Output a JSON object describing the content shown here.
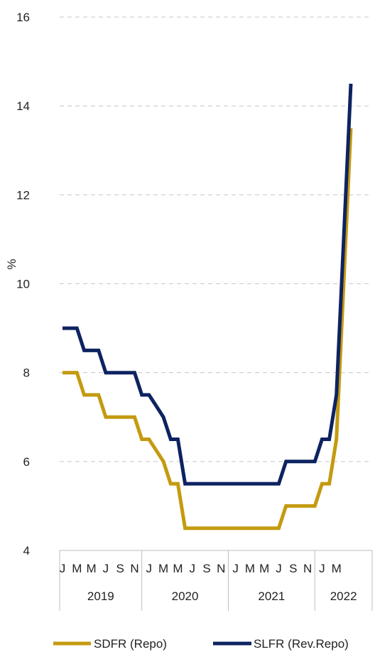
{
  "chart_data": {
    "type": "line",
    "ylabel": "%",
    "ylim": [
      4,
      16
    ],
    "yticks": [
      4,
      6,
      8,
      10,
      12,
      14,
      16
    ],
    "grid": "horizontal-dashed",
    "legend_position": "bottom",
    "month_labels": [
      "J",
      "M",
      "M",
      "J",
      "S",
      "N",
      "J",
      "M",
      "M",
      "J",
      "S",
      "N",
      "J",
      "M",
      "M",
      "J",
      "S",
      "N",
      "J",
      "M"
    ],
    "years": [
      {
        "label": "2019",
        "from": 0,
        "to": 12
      },
      {
        "label": "2020",
        "from": 12,
        "to": 24
      },
      {
        "label": "2021",
        "from": 24,
        "to": 36
      },
      {
        "label": "2022",
        "from": 36,
        "to": 40
      }
    ],
    "x": [
      0,
      1,
      2,
      3,
      4,
      5,
      6,
      7,
      8,
      9,
      10,
      11,
      12,
      13,
      14,
      15,
      16,
      17,
      18,
      19,
      20,
      21,
      22,
      23,
      24,
      25,
      26,
      27,
      28,
      29,
      30,
      31,
      32,
      33,
      34,
      35,
      36,
      37,
      38,
      39,
      40
    ],
    "series": [
      {
        "name": "SDFR (Repo)",
        "color": "#C49A0F",
        "values": [
          8,
          8,
          8,
          7.5,
          7.5,
          7.5,
          7,
          7,
          7,
          7,
          7,
          6.5,
          6.5,
          6.25,
          6,
          5.5,
          5.5,
          4.5,
          4.5,
          4.5,
          4.5,
          4.5,
          4.5,
          4.5,
          4.5,
          4.5,
          4.5,
          4.5,
          4.5,
          4.5,
          4.5,
          5,
          5,
          5,
          5,
          5,
          5.5,
          5.5,
          6.5,
          10,
          13.5
        ]
      },
      {
        "name": "SLFR (Rev.Repo)",
        "color": "#0D2361",
        "values": [
          9,
          9,
          9,
          8.5,
          8.5,
          8.5,
          8,
          8,
          8,
          8,
          8,
          7.5,
          7.5,
          7.25,
          7,
          6.5,
          6.5,
          5.5,
          5.5,
          5.5,
          5.5,
          5.5,
          5.5,
          5.5,
          5.5,
          5.5,
          5.5,
          5.5,
          5.5,
          5.5,
          5.5,
          6,
          6,
          6,
          6,
          6,
          6.5,
          6.5,
          7.5,
          11,
          14.5
        ]
      }
    ]
  }
}
